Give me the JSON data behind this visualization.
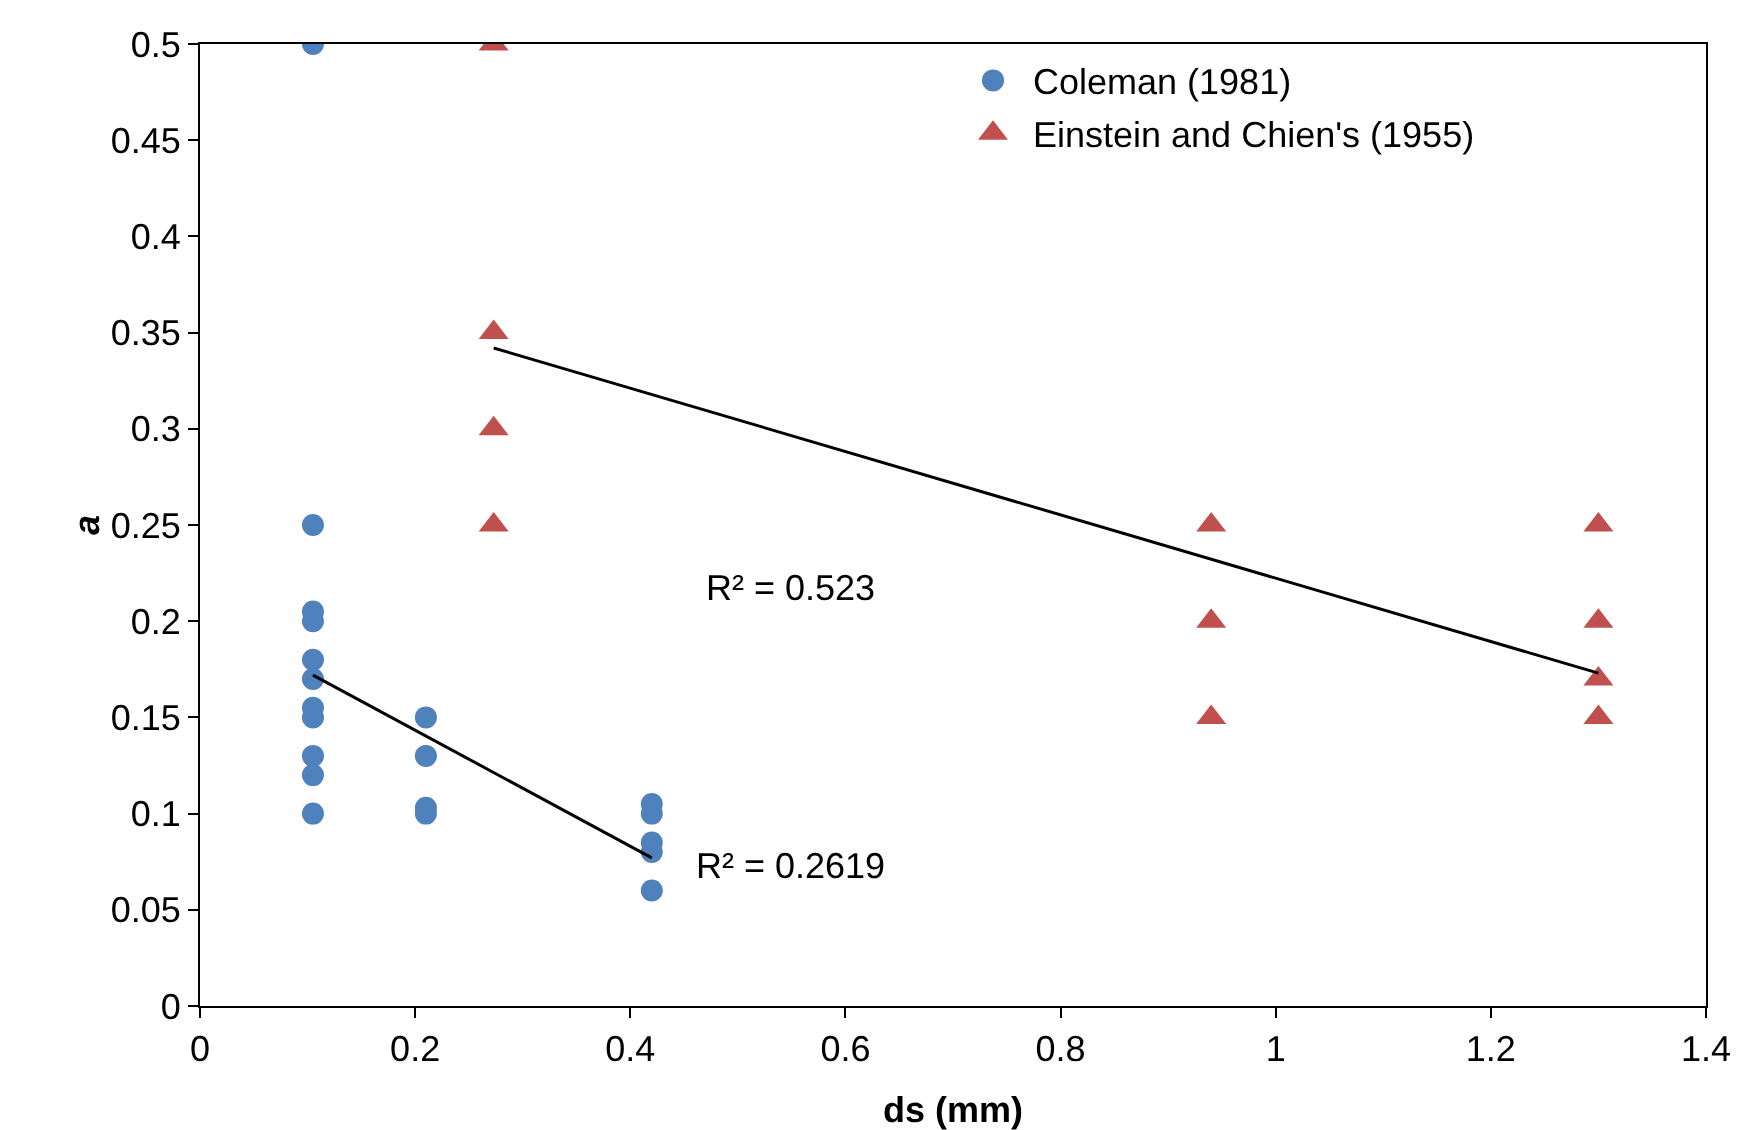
{
  "chart_data": {
    "type": "scatter",
    "xlabel": "ds (mm)",
    "ylabel": "a",
    "xlim": [
      0,
      1.4
    ],
    "xticks": [
      0,
      0.2,
      0.4,
      0.6,
      0.8,
      1,
      1.2,
      1.4
    ],
    "ylim": [
      0,
      0.5
    ],
    "yticks": [
      0,
      0.05,
      0.1,
      0.15,
      0.2,
      0.25,
      0.3,
      0.35,
      0.4,
      0.45,
      0.5
    ],
    "grid": false,
    "legend": "top right",
    "series": [
      {
        "name": "Coleman (1981)",
        "color": "#4f81bd",
        "marker": "circle",
        "x": [
          0.105,
          0.105,
          0.105,
          0.105,
          0.105,
          0.105,
          0.105,
          0.105,
          0.105,
          0.105,
          0.105,
          0.21,
          0.21,
          0.21,
          0.21,
          0.42,
          0.42,
          0.42,
          0.42,
          0.42
        ],
        "values": [
          0.5,
          0.25,
          0.205,
          0.2,
          0.18,
          0.17,
          0.155,
          0.15,
          0.13,
          0.12,
          0.1,
          0.15,
          0.13,
          0.103,
          0.1,
          0.105,
          0.1,
          0.085,
          0.08,
          0.06
        ]
      },
      {
        "name": "Einstein and Chien's (1955)",
        "color": "#c0504d",
        "marker": "triangle",
        "x": [
          0.273,
          0.273,
          0.273,
          0.273,
          0.94,
          0.94,
          0.94,
          1.3,
          1.3,
          1.3,
          1.3
        ],
        "values": [
          0.5,
          0.35,
          0.3,
          0.25,
          0.25,
          0.2,
          0.15,
          0.25,
          0.2,
          0.17,
          0.15
        ]
      },
      {
        "type": "line",
        "color": "#000000",
        "x": [
          0.105,
          0.42
        ],
        "values": [
          0.172,
          0.077
        ]
      },
      {
        "type": "line",
        "color": "#000000",
        "x": [
          0.273,
          1.3
        ],
        "values": [
          0.342,
          0.173
        ]
      }
    ],
    "annotations": [
      "R² = 0.523",
      "R² = 0.2619"
    ]
  }
}
